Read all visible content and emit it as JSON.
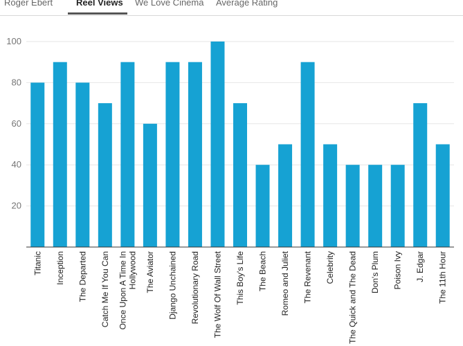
{
  "tabs": [
    {
      "label": "Roger Ebert"
    },
    {
      "label": "Reel Views"
    },
    {
      "label": "We Love Cinema"
    },
    {
      "label": "Average Rating"
    }
  ],
  "active_tab": 1,
  "colors": {
    "bar": "#16a2d3",
    "grid": "#e6e6e6",
    "axis": "#333333"
  },
  "chart_data": {
    "type": "bar",
    "title": "",
    "xlabel": "",
    "ylabel": "",
    "ylim": [
      0,
      100
    ],
    "yticks": [
      20,
      40,
      60,
      80,
      100
    ],
    "grid": true,
    "categories": [
      "Titanic",
      "Inception",
      "The Departed",
      "Catch Me If You Can",
      [
        "Once Upon A Time In",
        "Hollywood"
      ],
      "The Aviator",
      "Django Unchained",
      "Revolutionary Road",
      "The Wolf Of Wall Street",
      "This Boy's Life",
      "The Beach",
      "Romeo and Juliet",
      "The Revenant",
      "Celebrity",
      "The Quick and The Dead",
      "Don's Plum",
      "Poison Ivy",
      "J. Edgar",
      "The 11th Hour"
    ],
    "values": [
      80,
      90,
      80,
      70,
      90,
      60,
      90,
      90,
      100,
      70,
      40,
      50,
      90,
      50,
      40,
      40,
      40,
      70,
      50
    ]
  }
}
